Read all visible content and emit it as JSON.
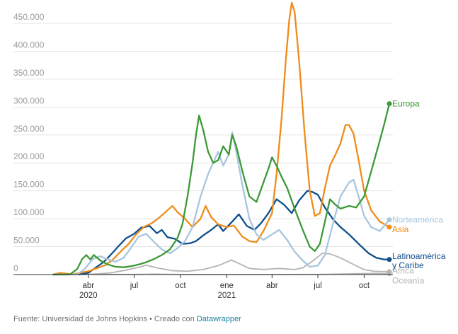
{
  "chart_data": {
    "type": "line",
    "title": "",
    "xlabel": "",
    "ylabel": "",
    "ylim": [
      0,
      450000
    ],
    "y_ticks": [
      {
        "value": 0,
        "label": "0"
      },
      {
        "value": 50000,
        "label": "50.000"
      },
      {
        "value": 100000,
        "label": "100.000"
      },
      {
        "value": 150000,
        "label": "150.000"
      },
      {
        "value": 200000,
        "label": "200.000"
      },
      {
        "value": 250000,
        "label": "250.000"
      },
      {
        "value": 300000,
        "label": "300.000"
      },
      {
        "value": 350000,
        "label": "350.000"
      },
      {
        "value": 400000,
        "label": "400.000"
      },
      {
        "value": 450000,
        "label": "450.000"
      }
    ],
    "x_range": [
      "2020-01-22",
      "2021-11-20"
    ],
    "x_ticks": [
      {
        "date": "2020-04-01",
        "label": "abr",
        "year": "2020"
      },
      {
        "date": "2020-07-01",
        "label": "jul",
        "year": ""
      },
      {
        "date": "2020-10-01",
        "label": "oct",
        "year": ""
      },
      {
        "date": "2021-01-01",
        "label": "ene",
        "year": "2021"
      },
      {
        "date": "2021-04-01",
        "label": "abr",
        "year": ""
      },
      {
        "date": "2021-07-01",
        "label": "jul",
        "year": ""
      },
      {
        "date": "2021-10-01",
        "label": "oct",
        "year": ""
      }
    ],
    "grid": true,
    "legend": "direct-labels-right",
    "series": [
      {
        "name": "Oceanía",
        "color": "#b4b4b4",
        "width": 1.8,
        "label_lines": [
          "Oceanía"
        ],
        "label_value": -11000,
        "points": [
          [
            "2020-01-22",
            0
          ],
          [
            "2020-03-20",
            500
          ],
          [
            "2020-04-15",
            300
          ],
          [
            "2020-07-01",
            300
          ],
          [
            "2020-08-10",
            700
          ],
          [
            "2020-10-01",
            100
          ],
          [
            "2021-03-01",
            100
          ],
          [
            "2021-07-01",
            200
          ],
          [
            "2021-08-15",
            900
          ],
          [
            "2021-09-15",
            1500
          ],
          [
            "2021-10-20",
            2000
          ],
          [
            "2021-11-20",
            1800
          ]
        ]
      },
      {
        "name": "África",
        "color": "#b4b4b4",
        "width": 1.8,
        "label_lines": [
          "África"
        ],
        "label_value": 7000,
        "points": [
          [
            "2020-01-22",
            0
          ],
          [
            "2020-03-15",
            200
          ],
          [
            "2020-04-15",
            1000
          ],
          [
            "2020-05-15",
            3000
          ],
          [
            "2020-06-15",
            8000
          ],
          [
            "2020-07-15",
            14000
          ],
          [
            "2020-07-25",
            17000
          ],
          [
            "2020-08-15",
            12000
          ],
          [
            "2020-09-15",
            7000
          ],
          [
            "2020-10-15",
            6000
          ],
          [
            "2020-11-15",
            9000
          ],
          [
            "2020-12-15",
            16000
          ],
          [
            "2021-01-10",
            26000
          ],
          [
            "2021-01-20",
            22000
          ],
          [
            "2021-02-15",
            11000
          ],
          [
            "2021-03-15",
            9000
          ],
          [
            "2021-04-15",
            11000
          ],
          [
            "2021-05-15",
            9000
          ],
          [
            "2021-06-01",
            12000
          ],
          [
            "2021-06-20",
            24000
          ],
          [
            "2021-07-10",
            38000
          ],
          [
            "2021-07-25",
            37000
          ],
          [
            "2021-08-15",
            30000
          ],
          [
            "2021-09-10",
            18000
          ],
          [
            "2021-10-01",
            9000
          ],
          [
            "2021-10-20",
            6000
          ],
          [
            "2021-11-20",
            5000
          ]
        ]
      },
      {
        "name": "Latinoamérica y Caribe",
        "color": "#0e4f8d",
        "width": 2.3,
        "label_lines": [
          "Latinoamérica",
          "y Caribe"
        ],
        "label_value": 33000,
        "points": [
          [
            "2020-01-22",
            0
          ],
          [
            "2020-03-15",
            300
          ],
          [
            "2020-04-01",
            3000
          ],
          [
            "2020-04-15",
            12000
          ],
          [
            "2020-05-01",
            22000
          ],
          [
            "2020-05-15",
            35000
          ],
          [
            "2020-06-01",
            52000
          ],
          [
            "2020-06-15",
            65000
          ],
          [
            "2020-07-01",
            73000
          ],
          [
            "2020-07-15",
            84000
          ],
          [
            "2020-08-01",
            87000
          ],
          [
            "2020-08-15",
            74000
          ],
          [
            "2020-08-25",
            80000
          ],
          [
            "2020-09-05",
            67000
          ],
          [
            "2020-09-20",
            64000
          ],
          [
            "2020-10-05",
            55000
          ],
          [
            "2020-10-20",
            56000
          ],
          [
            "2020-11-01",
            60000
          ],
          [
            "2020-11-15",
            70000
          ],
          [
            "2020-12-01",
            80000
          ],
          [
            "2020-12-15",
            90000
          ],
          [
            "2020-12-25",
            78000
          ],
          [
            "2021-01-10",
            93000
          ],
          [
            "2021-01-25",
            108000
          ],
          [
            "2021-02-10",
            87000
          ],
          [
            "2021-02-25",
            80000
          ],
          [
            "2021-03-10",
            92000
          ],
          [
            "2021-03-25",
            110000
          ],
          [
            "2021-04-10",
            135000
          ],
          [
            "2021-04-25",
            125000
          ],
          [
            "2021-05-10",
            110000
          ],
          [
            "2021-05-25",
            133000
          ],
          [
            "2021-06-10",
            150000
          ],
          [
            "2021-06-20",
            148000
          ],
          [
            "2021-07-01",
            143000
          ],
          [
            "2021-07-15",
            120000
          ],
          [
            "2021-08-01",
            98000
          ],
          [
            "2021-08-15",
            85000
          ],
          [
            "2021-09-01",
            72000
          ],
          [
            "2021-09-20",
            55000
          ],
          [
            "2021-10-10",
            38000
          ],
          [
            "2021-10-25",
            30000
          ],
          [
            "2021-11-10",
            27000
          ],
          [
            "2021-11-20",
            27000
          ]
        ]
      },
      {
        "name": "Asia",
        "color": "#ef8c1a",
        "width": 2.3,
        "label_lines": [
          "Asia"
        ],
        "label_value": 81000,
        "points": [
          [
            "2020-01-22",
            0
          ],
          [
            "2020-02-05",
            3000
          ],
          [
            "2020-02-15",
            2000
          ],
          [
            "2020-03-01",
            500
          ],
          [
            "2020-04-01",
            6000
          ],
          [
            "2020-04-20",
            12000
          ],
          [
            "2020-05-05",
            17000
          ],
          [
            "2020-05-20",
            27000
          ],
          [
            "2020-06-05",
            42000
          ],
          [
            "2020-06-20",
            55000
          ],
          [
            "2020-07-05",
            72000
          ],
          [
            "2020-07-20",
            85000
          ],
          [
            "2020-08-05",
            92000
          ],
          [
            "2020-08-20",
            102000
          ],
          [
            "2020-09-05",
            115000
          ],
          [
            "2020-09-15",
            123000
          ],
          [
            "2020-09-25",
            112000
          ],
          [
            "2020-10-10",
            100000
          ],
          [
            "2020-10-25",
            85000
          ],
          [
            "2020-11-10",
            100000
          ],
          [
            "2020-11-20",
            123000
          ],
          [
            "2020-12-01",
            103000
          ],
          [
            "2020-12-15",
            90000
          ],
          [
            "2021-01-01",
            85000
          ],
          [
            "2021-01-15",
            88000
          ],
          [
            "2021-02-01",
            68000
          ],
          [
            "2021-02-15",
            60000
          ],
          [
            "2021-03-01",
            58000
          ],
          [
            "2021-03-15",
            78000
          ],
          [
            "2021-04-01",
            110000
          ],
          [
            "2021-04-10",
            180000
          ],
          [
            "2021-04-20",
            280000
          ],
          [
            "2021-04-28",
            380000
          ],
          [
            "2021-05-05",
            455000
          ],
          [
            "2021-05-10",
            487000
          ],
          [
            "2021-05-16",
            470000
          ],
          [
            "2021-05-25",
            380000
          ],
          [
            "2021-06-05",
            250000
          ],
          [
            "2021-06-15",
            150000
          ],
          [
            "2021-06-25",
            105000
          ],
          [
            "2021-07-05",
            110000
          ],
          [
            "2021-07-15",
            155000
          ],
          [
            "2021-07-25",
            195000
          ],
          [
            "2021-08-05",
            215000
          ],
          [
            "2021-08-15",
            235000
          ],
          [
            "2021-08-25",
            268000
          ],
          [
            "2021-09-01",
            268000
          ],
          [
            "2021-09-10",
            252000
          ],
          [
            "2021-09-20",
            205000
          ],
          [
            "2021-10-01",
            150000
          ],
          [
            "2021-10-15",
            115000
          ],
          [
            "2021-11-01",
            95000
          ],
          [
            "2021-11-20",
            85000
          ]
        ]
      },
      {
        "name": "Norteamérica",
        "color": "#a8c6de",
        "width": 2.3,
        "label_lines": [
          "Norteamérica"
        ],
        "label_value": 98000,
        "points": [
          [
            "2020-01-22",
            0
          ],
          [
            "2020-03-10",
            300
          ],
          [
            "2020-03-25",
            10000
          ],
          [
            "2020-04-10",
            28000
          ],
          [
            "2020-04-25",
            33000
          ],
          [
            "2020-05-10",
            27000
          ],
          [
            "2020-05-25",
            23000
          ],
          [
            "2020-06-10",
            30000
          ],
          [
            "2020-06-25",
            48000
          ],
          [
            "2020-07-10",
            68000
          ],
          [
            "2020-07-25",
            73000
          ],
          [
            "2020-08-10",
            58000
          ],
          [
            "2020-08-25",
            45000
          ],
          [
            "2020-09-10",
            38000
          ],
          [
            "2020-09-25",
            47000
          ],
          [
            "2020-10-10",
            60000
          ],
          [
            "2020-10-25",
            85000
          ],
          [
            "2020-11-10",
            140000
          ],
          [
            "2020-11-25",
            180000
          ],
          [
            "2020-12-05",
            200000
          ],
          [
            "2020-12-15",
            220000
          ],
          [
            "2020-12-25",
            195000
          ],
          [
            "2021-01-05",
            215000
          ],
          [
            "2021-01-12",
            255000
          ],
          [
            "2021-01-20",
            220000
          ],
          [
            "2021-02-01",
            160000
          ],
          [
            "2021-02-15",
            100000
          ],
          [
            "2021-03-01",
            72000
          ],
          [
            "2021-03-15",
            62000
          ],
          [
            "2021-04-01",
            72000
          ],
          [
            "2021-04-15",
            80000
          ],
          [
            "2021-05-01",
            62000
          ],
          [
            "2021-05-15",
            42000
          ],
          [
            "2021-06-01",
            25000
          ],
          [
            "2021-06-15",
            14000
          ],
          [
            "2021-07-01",
            16000
          ],
          [
            "2021-07-15",
            35000
          ],
          [
            "2021-08-01",
            95000
          ],
          [
            "2021-08-15",
            140000
          ],
          [
            "2021-09-01",
            165000
          ],
          [
            "2021-09-10",
            170000
          ],
          [
            "2021-09-20",
            140000
          ],
          [
            "2021-10-01",
            105000
          ],
          [
            "2021-10-15",
            85000
          ],
          [
            "2021-11-01",
            78000
          ],
          [
            "2021-11-20",
            98000
          ]
        ]
      },
      {
        "name": "Europa",
        "color": "#3c9a35",
        "width": 2.3,
        "label_lines": [
          "Europa"
        ],
        "label_value": 306000,
        "points": [
          [
            "2020-01-22",
            0
          ],
          [
            "2020-02-25",
            500
          ],
          [
            "2020-03-10",
            10000
          ],
          [
            "2020-03-20",
            28000
          ],
          [
            "2020-03-28",
            35000
          ],
          [
            "2020-04-05",
            27000
          ],
          [
            "2020-04-12",
            35000
          ],
          [
            "2020-04-25",
            25000
          ],
          [
            "2020-05-10",
            18000
          ],
          [
            "2020-05-25",
            14000
          ],
          [
            "2020-06-10",
            13000
          ],
          [
            "2020-06-25",
            15000
          ],
          [
            "2020-07-10",
            18000
          ],
          [
            "2020-07-25",
            22000
          ],
          [
            "2020-08-10",
            28000
          ],
          [
            "2020-08-25",
            35000
          ],
          [
            "2020-09-10",
            45000
          ],
          [
            "2020-09-25",
            65000
          ],
          [
            "2020-10-05",
            90000
          ],
          [
            "2020-10-15",
            140000
          ],
          [
            "2020-10-25",
            200000
          ],
          [
            "2020-11-01",
            250000
          ],
          [
            "2020-11-07",
            285000
          ],
          [
            "2020-11-15",
            260000
          ],
          [
            "2020-11-25",
            220000
          ],
          [
            "2020-12-05",
            200000
          ],
          [
            "2020-12-15",
            205000
          ],
          [
            "2020-12-25",
            230000
          ],
          [
            "2021-01-05",
            215000
          ],
          [
            "2021-01-12",
            250000
          ],
          [
            "2021-01-20",
            230000
          ],
          [
            "2021-02-01",
            185000
          ],
          [
            "2021-02-15",
            140000
          ],
          [
            "2021-03-01",
            130000
          ],
          [
            "2021-03-15",
            165000
          ],
          [
            "2021-03-25",
            190000
          ],
          [
            "2021-04-01",
            210000
          ],
          [
            "2021-04-10",
            195000
          ],
          [
            "2021-04-20",
            175000
          ],
          [
            "2021-05-01",
            155000
          ],
          [
            "2021-05-15",
            120000
          ],
          [
            "2021-06-01",
            80000
          ],
          [
            "2021-06-15",
            50000
          ],
          [
            "2021-06-25",
            42000
          ],
          [
            "2021-07-05",
            55000
          ],
          [
            "2021-07-15",
            95000
          ],
          [
            "2021-07-25",
            135000
          ],
          [
            "2021-08-05",
            125000
          ],
          [
            "2021-08-15",
            118000
          ],
          [
            "2021-09-01",
            123000
          ],
          [
            "2021-09-15",
            120000
          ],
          [
            "2021-10-01",
            140000
          ],
          [
            "2021-10-15",
            185000
          ],
          [
            "2021-11-01",
            240000
          ],
          [
            "2021-11-10",
            270000
          ],
          [
            "2021-11-20",
            306000
          ]
        ]
      }
    ]
  },
  "footer": {
    "text": "Fuente: Universidad de Johns Hopkins • Creado con ",
    "link": "Datawrapper"
  }
}
